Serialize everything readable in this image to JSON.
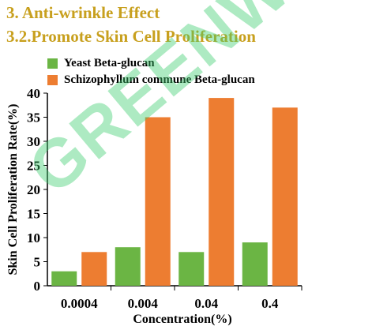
{
  "heading": {
    "line1": "3. Anti-wrinkle Effect",
    "line2": "3.2.Promote Skin Cell Proliferation"
  },
  "watermark": "GREENWAY",
  "colors": {
    "heading": "#c8a01e",
    "yeast": "#6bb544",
    "schizophyllum": "#ed7d31",
    "watermark": "#3ccd6e"
  },
  "chart_data": {
    "type": "bar",
    "categories": [
      "0.0004",
      "0.004",
      "0.04",
      "0.4"
    ],
    "series": [
      {
        "name": "Yeast Beta-glucan",
        "values": [
          3,
          8,
          7,
          9
        ]
      },
      {
        "name": "Schizophyllum commune Beta-glucan",
        "values": [
          7,
          35,
          39,
          37
        ]
      }
    ],
    "xlabel": "Concentration(%)",
    "ylabel": "Skin Cell Proliferation Rate(%)",
    "ylim": [
      0,
      40
    ],
    "yticks": [
      0,
      5,
      10,
      15,
      20,
      25,
      30,
      35,
      40
    ],
    "grid": false,
    "legend_position": "top-left"
  }
}
